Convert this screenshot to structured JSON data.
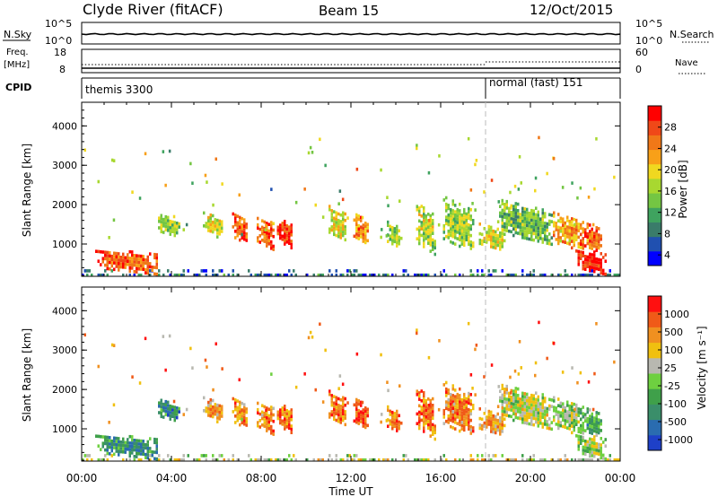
{
  "header": {
    "station": "Clyde River (fitACF)",
    "beam": "Beam 15",
    "date": "12/Oct/2015"
  },
  "noise_panel": {
    "left_label": "N.Sky",
    "right_label": "N.Search",
    "left_ticks": [
      "10^5",
      "10^0"
    ],
    "right_ticks": [
      "10^5",
      "10^0"
    ]
  },
  "freq_panel": {
    "left_label_line1": "Freq.",
    "left_label_line2": "[MHz]",
    "right_label": "Nave",
    "left_ticks": [
      "18",
      "8"
    ],
    "right_ticks": [
      "60",
      "0"
    ]
  },
  "cpid_panel": {
    "label": "CPID",
    "segments": [
      {
        "name": "themis 3300",
        "start_hour": 0,
        "end_hour": 18
      },
      {
        "name": "normal (fast) 151",
        "start_hour": 18,
        "end_hour": 24
      }
    ]
  },
  "time_axis": {
    "label": "Time UT",
    "ticks": [
      "00:00",
      "04:00",
      "08:00",
      "12:00",
      "16:00",
      "20:00",
      "00:00"
    ],
    "tick_hours": [
      0,
      4,
      8,
      12,
      16,
      20,
      24
    ]
  },
  "mode_change_hour": 18,
  "chart_data": [
    {
      "type": "heatmap",
      "name": "power",
      "ylabel": "Slant Range [km]",
      "xlabel": "Time UT",
      "xlim_hours": [
        0,
        24
      ],
      "ylim": [
        180,
        4600
      ],
      "yticks": [
        1000,
        2000,
        3000,
        4000
      ],
      "colorbar_label": "Power [dB]",
      "colorbar_ticks": [
        "28",
        "24",
        "20",
        "16",
        "12",
        "8",
        "4"
      ],
      "colorbar_colors": [
        "#0000ff",
        "#2050b0",
        "#3a7c6a",
        "#3fa35f",
        "#74c643",
        "#a8d830",
        "#f0d820",
        "#f8a018",
        "#f07818",
        "#f04818",
        "#ff0000"
      ],
      "clusters": [
        {
          "t0": 0.6,
          "t1": 3.4,
          "r0": 350,
          "r1": 850,
          "level": 0.85
        },
        {
          "t0": 3.4,
          "t1": 4.4,
          "r0": 1250,
          "r1": 1700,
          "level": 0.45
        },
        {
          "t0": 5.4,
          "t1": 6.3,
          "r0": 1300,
          "r1": 1750,
          "level": 0.55
        },
        {
          "t0": 6.7,
          "t1": 7.4,
          "r0": 1100,
          "r1": 1700,
          "level": 0.85
        },
        {
          "t0": 7.8,
          "t1": 8.6,
          "r0": 950,
          "r1": 1650,
          "level": 0.8
        },
        {
          "t0": 8.7,
          "t1": 9.4,
          "r0": 950,
          "r1": 1600,
          "level": 0.9
        },
        {
          "t0": 10.9,
          "t1": 11.8,
          "r0": 1200,
          "r1": 1900,
          "level": 0.55
        },
        {
          "t0": 12.1,
          "t1": 12.8,
          "r0": 1050,
          "r1": 1700,
          "level": 0.75
        },
        {
          "t0": 13.6,
          "t1": 14.3,
          "r0": 950,
          "r1": 1500,
          "level": 0.45
        },
        {
          "t0": 14.9,
          "t1": 15.8,
          "r0": 900,
          "r1": 1900,
          "level": 0.5
        },
        {
          "t0": 16.1,
          "t1": 17.5,
          "r0": 950,
          "r1": 2050,
          "level": 0.45
        },
        {
          "t0": 17.7,
          "t1": 18.9,
          "r0": 900,
          "r1": 1450,
          "level": 0.55
        },
        {
          "t0": 18.6,
          "t1": 21.0,
          "r0": 1100,
          "r1": 2000,
          "level": 0.4
        },
        {
          "t0": 21.0,
          "t1": 22.4,
          "r0": 950,
          "r1": 1700,
          "level": 0.7
        },
        {
          "t0": 22.0,
          "t1": 23.4,
          "r0": 300,
          "r1": 850,
          "level": 0.97
        },
        {
          "t0": 22.2,
          "t1": 23.2,
          "r0": 850,
          "r1": 1500,
          "level": 0.8
        }
      ]
    },
    {
      "type": "heatmap",
      "name": "velocity",
      "ylabel": "Slant Range [km]",
      "xlabel": "Time UT",
      "xlim_hours": [
        0,
        24
      ],
      "ylim": [
        180,
        4600
      ],
      "yticks": [
        1000,
        2000,
        3000,
        4000
      ],
      "colorbar_label": "Velocity [m s⁻¹]",
      "colorbar_ticks": [
        "1000",
        "500",
        "100",
        "25",
        "-25",
        "-100",
        "-500",
        "-1000"
      ],
      "colorbar_colors": [
        "#1e40c8",
        "#2a6cb0",
        "#3a8e6a",
        "#3fa04a",
        "#6ed040",
        "#b8b8b0",
        "#f0c010",
        "#f09020",
        "#f05a18",
        "#ff1010"
      ],
      "clusters": [
        {
          "t0": 0.6,
          "t1": 3.4,
          "r0": 350,
          "r1": 850,
          "level": 0.3
        },
        {
          "t0": 3.4,
          "t1": 4.4,
          "r0": 1250,
          "r1": 1700,
          "level": 0.25
        },
        {
          "t0": 5.4,
          "t1": 6.3,
          "r0": 1300,
          "r1": 1750,
          "level": 0.72
        },
        {
          "t0": 6.7,
          "t1": 7.4,
          "r0": 1100,
          "r1": 1700,
          "level": 0.75
        },
        {
          "t0": 7.8,
          "t1": 8.6,
          "r0": 950,
          "r1": 1650,
          "level": 0.75
        },
        {
          "t0": 8.7,
          "t1": 9.4,
          "r0": 950,
          "r1": 1600,
          "level": 0.8
        },
        {
          "t0": 10.9,
          "t1": 11.8,
          "r0": 1200,
          "r1": 1900,
          "level": 0.8
        },
        {
          "t0": 12.1,
          "t1": 12.8,
          "r0": 1050,
          "r1": 1700,
          "level": 0.9
        },
        {
          "t0": 13.6,
          "t1": 14.3,
          "r0": 950,
          "r1": 1500,
          "level": 0.78
        },
        {
          "t0": 14.9,
          "t1": 15.8,
          "r0": 900,
          "r1": 1900,
          "level": 0.8
        },
        {
          "t0": 16.1,
          "t1": 17.5,
          "r0": 950,
          "r1": 2050,
          "level": 0.75
        },
        {
          "t0": 17.7,
          "t1": 18.9,
          "r0": 900,
          "r1": 1450,
          "level": 0.72
        },
        {
          "t0": 18.6,
          "t1": 21.0,
          "r0": 1100,
          "r1": 2000,
          "level": 0.55
        },
        {
          "t0": 21.0,
          "t1": 22.4,
          "r0": 950,
          "r1": 1700,
          "level": 0.5
        },
        {
          "t0": 22.0,
          "t1": 23.4,
          "r0": 300,
          "r1": 850,
          "level": 0.52
        },
        {
          "t0": 22.2,
          "t1": 23.2,
          "r0": 850,
          "r1": 1500,
          "level": 0.35
        }
      ]
    }
  ]
}
